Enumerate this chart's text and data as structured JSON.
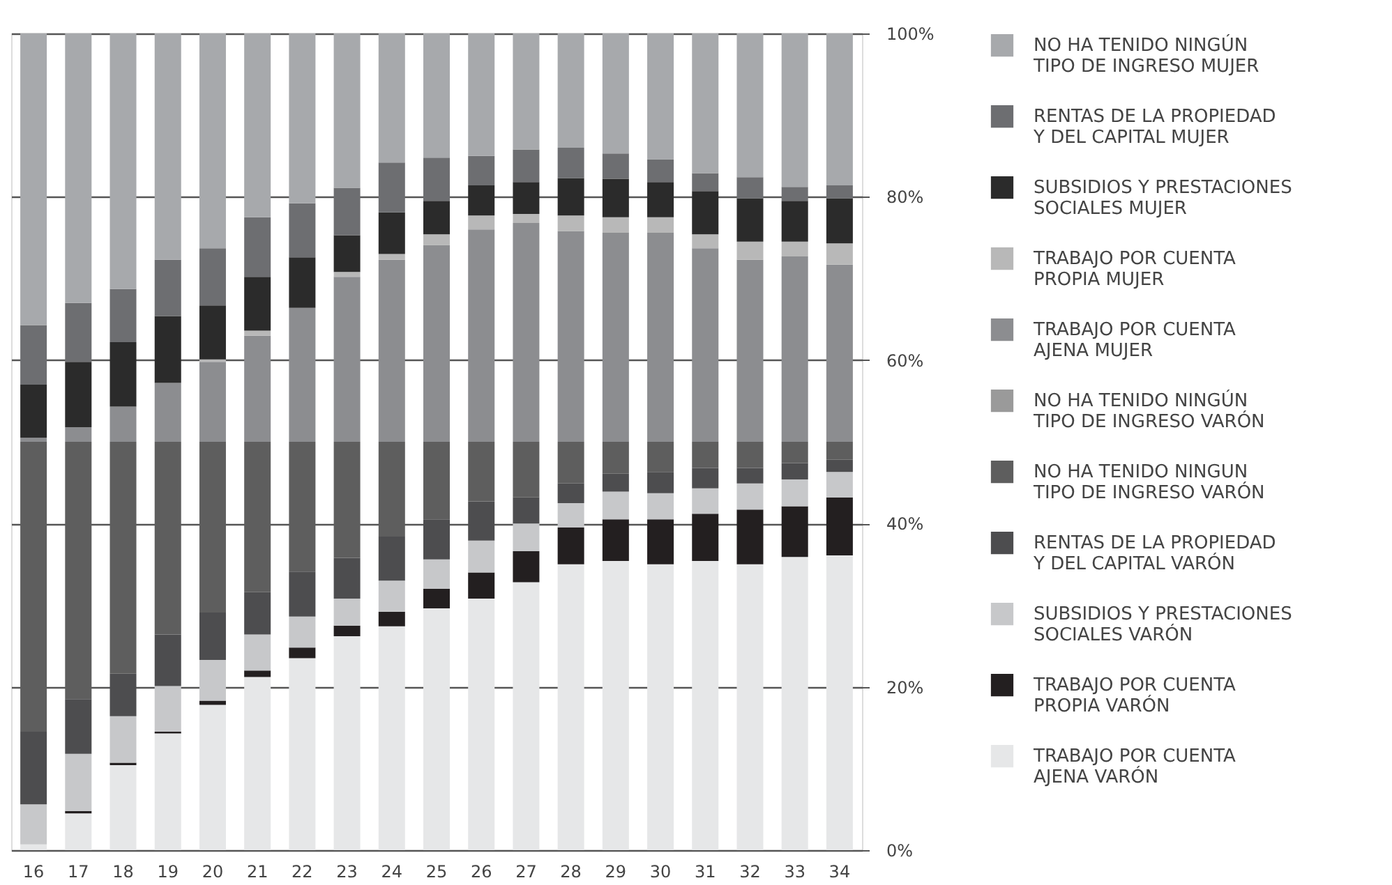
{
  "chart_data": {
    "type": "bar",
    "stacked": true,
    "categories": [
      "16",
      "17",
      "18",
      "19",
      "20",
      "21",
      "22",
      "23",
      "24",
      "25",
      "26",
      "27",
      "28",
      "29",
      "30",
      "31",
      "32",
      "33",
      "34"
    ],
    "ylim": [
      0,
      100
    ],
    "yticks": [
      {
        "value": 0,
        "label": "0%"
      },
      {
        "value": 20,
        "label": "20%"
      },
      {
        "value": 40,
        "label": "40%"
      },
      {
        "value": 60,
        "label": "60%"
      },
      {
        "value": 80,
        "label": "80%"
      },
      {
        "value": 100,
        "label": "100%"
      }
    ],
    "grid": "y",
    "legend": "right",
    "series": [
      {
        "name": "TRABAJO POR CUENTA AJENA VARÓN",
        "color": "#e6e7e8",
        "values": [
          0.7,
          4.5,
          10.4,
          14.3,
          17.8,
          21.2,
          23.5,
          26.2,
          27.4,
          29.6,
          30.8,
          32.8,
          35.0,
          35.4,
          35.0,
          35.4,
          35.0,
          35.9,
          36.1
        ]
      },
      {
        "name": "TRABAJO POR CUENTA PROPIA VARÓN",
        "color": "#231f20",
        "values": [
          0,
          0.3,
          0.3,
          0.2,
          0.5,
          0.8,
          1.3,
          1.3,
          1.8,
          2.4,
          3.2,
          3.8,
          4.5,
          5.1,
          5.5,
          5.8,
          6.7,
          6.2,
          7.1
        ]
      },
      {
        "name": "SUBSIDIOS Y PRESTACIONES SOCIALES VARÓN",
        "color": "#c7c8ca",
        "values": [
          4.9,
          7.0,
          5.7,
          5.6,
          5.0,
          4.4,
          3.8,
          3.3,
          3.8,
          3.6,
          3.9,
          3.4,
          3.0,
          3.4,
          3.2,
          3.1,
          3.2,
          3.3,
          3.1
        ]
      },
      {
        "name": "RENTAS DE LA PROPIEDAD Y DEL CAPITAL VARÓN",
        "color": "#4d4d4f",
        "values": [
          8.9,
          6.7,
          5.2,
          6.3,
          5.8,
          5.2,
          5.5,
          5.0,
          5.4,
          4.9,
          4.8,
          3.2,
          2.4,
          2.2,
          2.6,
          2.5,
          1.9,
          2.0,
          1.5
        ]
      },
      {
        "name": "NO HA TENIDO NINGUN TIPO DE INGRESO VARÓN",
        "color": "#5e5e5e",
        "values": [
          35.5,
          31.5,
          28.4,
          23.6,
          20.9,
          18.4,
          15.9,
          14.2,
          11.6,
          9.5,
          7.3,
          6.8,
          5.1,
          3.9,
          3.7,
          3.2,
          3.2,
          2.6,
          2.2
        ]
      },
      {
        "name": "NO HA TENIDO NINGÚN TIPO DE INGRESO VARÓN",
        "color": "#9a9a9a",
        "values": [
          null,
          null,
          null,
          null,
          null,
          null,
          null,
          null,
          null,
          null,
          null,
          null,
          null,
          null,
          null,
          null,
          null,
          null,
          null
        ]
      },
      {
        "name": "TRABAJO POR CUENTA AJENA MUJER",
        "color": "#8c8d90",
        "values": [
          0.5,
          1.8,
          4.3,
          7.2,
          9.8,
          13.0,
          16.4,
          20.2,
          22.3,
          24.1,
          26.0,
          26.8,
          25.8,
          25.6,
          25.6,
          23.7,
          22.3,
          22.7,
          21.7
        ]
      },
      {
        "name": "TRABAJO POR CUENTA PROPIA MUJER",
        "color": "#b8b8b8",
        "values": [
          0,
          0,
          0,
          0,
          0.3,
          0.6,
          0,
          0.6,
          0.7,
          1.3,
          1.7,
          1.1,
          1.9,
          1.9,
          1.9,
          1.7,
          2.2,
          1.8,
          2.6
        ]
      },
      {
        "name": "SUBSIDIOS Y PRESTACIONES SOCIALES MUJER",
        "color": "#2b2b2b",
        "values": [
          6.5,
          8.0,
          7.9,
          8.2,
          6.6,
          6.6,
          6.2,
          4.5,
          5.1,
          4.1,
          3.7,
          3.9,
          4.6,
          4.7,
          4.3,
          5.3,
          5.3,
          5.0,
          5.5
        ]
      },
      {
        "name": "RENTAS DE LA PROPIEDAD Y DEL CAPITAL MUJER",
        "color": "#6d6e71",
        "values": [
          7.3,
          7.2,
          6.5,
          6.9,
          7.0,
          7.3,
          6.6,
          5.8,
          6.1,
          5.3,
          3.6,
          4.0,
          3.7,
          3.1,
          2.8,
          2.2,
          2.6,
          1.7,
          1.6
        ]
      },
      {
        "name": "NO HA TENIDO NINGÚN TIPO DE INGRESO MUJER",
        "color": "#a7a9ac",
        "values": [
          35.7,
          33.0,
          31.3,
          27.7,
          26.3,
          22.5,
          20.8,
          18.9,
          15.8,
          15.2,
          15.0,
          14.2,
          14.0,
          14.7,
          15.4,
          17.1,
          17.6,
          18.8,
          18.6
        ]
      }
    ]
  }
}
